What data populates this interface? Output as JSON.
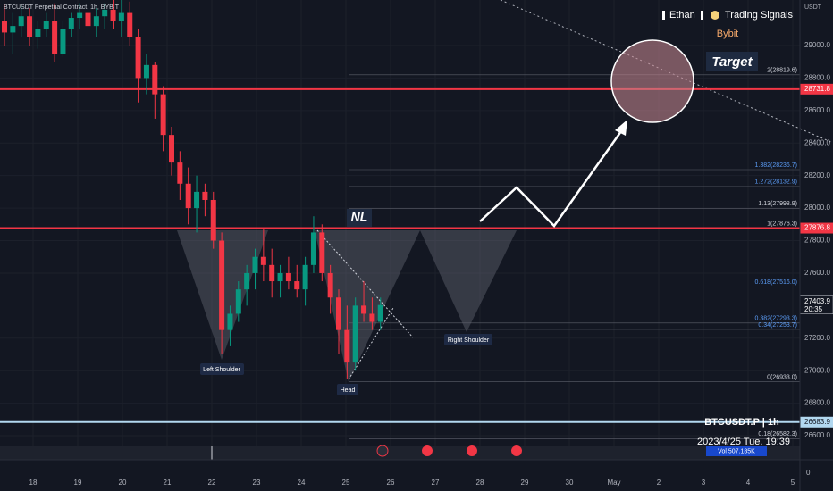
{
  "header": {
    "symbol": "BTCUSDT Perpetual Contract, 1h, BYBIT"
  },
  "watermark": {
    "author": "Ethan",
    "channel": "Trading Signals",
    "exchange": "Bybit"
  },
  "chart_data": {
    "type": "candlestick",
    "currency": "USDT",
    "up_color": "#089981",
    "down_color": "#f23645",
    "ylim": [
      26452,
      29280
    ],
    "yticks": [
      {
        "value": 29000,
        "label": "29000.0"
      },
      {
        "value": 28800,
        "label": "28800.0"
      },
      {
        "value": 28600,
        "label": "28600.0"
      },
      {
        "value": 28400,
        "label": "28400.0"
      },
      {
        "value": 28200,
        "label": "28200.0"
      },
      {
        "value": 28000,
        "label": "28000.0"
      },
      {
        "value": 27800,
        "label": "27800.0"
      },
      {
        "value": 27600,
        "label": "27600.0"
      },
      {
        "value": 27200,
        "label": "27200.0"
      },
      {
        "value": 27000,
        "label": "27000.0"
      },
      {
        "value": 26800,
        "label": "26800.0"
      },
      {
        "value": 26600,
        "label": "26600.0"
      }
    ],
    "x_labels": [
      "18",
      "19",
      "20",
      "21",
      "22",
      "23",
      "24",
      "25",
      "26",
      "27",
      "28",
      "29",
      "30",
      "May",
      "2",
      "3",
      "4",
      "5"
    ],
    "candles": [
      {
        "open": 29150,
        "high": 29250,
        "low": 29000,
        "close": 29080
      },
      {
        "open": 29080,
        "high": 29200,
        "low": 28950,
        "close": 29120
      },
      {
        "open": 29120,
        "high": 29250,
        "low": 29050,
        "close": 29180
      },
      {
        "open": 29180,
        "high": 29230,
        "low": 29000,
        "close": 29050
      },
      {
        "open": 29050,
        "high": 29150,
        "low": 28980,
        "close": 29100
      },
      {
        "open": 29100,
        "high": 29200,
        "low": 29050,
        "close": 29150
      },
      {
        "open": 29150,
        "high": 29260,
        "low": 28900,
        "close": 28950
      },
      {
        "open": 28950,
        "high": 29150,
        "low": 28930,
        "close": 29100
      },
      {
        "open": 29100,
        "high": 29200,
        "low": 29050,
        "close": 29170
      },
      {
        "open": 29170,
        "high": 29260,
        "low": 29100,
        "close": 29200
      },
      {
        "open": 29200,
        "high": 29260,
        "low": 29080,
        "close": 29120
      },
      {
        "open": 29120,
        "high": 29230,
        "low": 29050,
        "close": 29180
      },
      {
        "open": 29180,
        "high": 29260,
        "low": 29100,
        "close": 29220
      },
      {
        "open": 29220,
        "high": 29280,
        "low": 29100,
        "close": 29150
      },
      {
        "open": 29150,
        "high": 29280,
        "low": 29050,
        "close": 29200
      },
      {
        "open": 29200,
        "high": 29270,
        "low": 29000,
        "close": 29050
      },
      {
        "open": 29050,
        "high": 29100,
        "low": 28650,
        "close": 28800
      },
      {
        "open": 28800,
        "high": 28950,
        "low": 28700,
        "close": 28880
      },
      {
        "open": 28880,
        "high": 28900,
        "low": 28550,
        "close": 28700
      },
      {
        "open": 28700,
        "high": 28750,
        "low": 28350,
        "close": 28450
      },
      {
        "open": 28450,
        "high": 28500,
        "low": 28200,
        "close": 28280
      },
      {
        "open": 28280,
        "high": 28350,
        "low": 28050,
        "close": 28150
      },
      {
        "open": 28150,
        "high": 28250,
        "low": 27900,
        "close": 28000
      },
      {
        "open": 28000,
        "high": 28200,
        "low": 27850,
        "close": 28100
      },
      {
        "open": 28100,
        "high": 28150,
        "low": 27950,
        "close": 28050
      },
      {
        "open": 28050,
        "high": 28100,
        "low": 27750,
        "close": 27800
      },
      {
        "open": 27800,
        "high": 27850,
        "low": 27100,
        "close": 27250
      },
      {
        "open": 27250,
        "high": 27400,
        "low": 27150,
        "close": 27350
      },
      {
        "open": 27350,
        "high": 27550,
        "low": 27300,
        "close": 27500
      },
      {
        "open": 27500,
        "high": 27650,
        "low": 27400,
        "close": 27600
      },
      {
        "open": 27600,
        "high": 27750,
        "low": 27500,
        "close": 27700
      },
      {
        "open": 27700,
        "high": 27880,
        "low": 27550,
        "close": 27650
      },
      {
        "open": 27650,
        "high": 27750,
        "low": 27450,
        "close": 27550
      },
      {
        "open": 27550,
        "high": 27650,
        "low": 27450,
        "close": 27600
      },
      {
        "open": 27600,
        "high": 27700,
        "low": 27500,
        "close": 27550
      },
      {
        "open": 27550,
        "high": 27650,
        "low": 27450,
        "close": 27500
      },
      {
        "open": 27500,
        "high": 27700,
        "low": 27400,
        "close": 27650
      },
      {
        "open": 27650,
        "high": 27950,
        "low": 27600,
        "close": 27850
      },
      {
        "open": 27850,
        "high": 27900,
        "low": 27550,
        "close": 27600
      },
      {
        "open": 27600,
        "high": 27650,
        "low": 27350,
        "close": 27450
      },
      {
        "open": 27450,
        "high": 27500,
        "low": 27100,
        "close": 27250
      },
      {
        "open": 27250,
        "high": 27400,
        "low": 26950,
        "close": 27050
      },
      {
        "open": 27050,
        "high": 27450,
        "low": 27000,
        "close": 27400
      },
      {
        "open": 27400,
        "high": 27550,
        "low": 27300,
        "close": 27350
      },
      {
        "open": 27350,
        "high": 27450,
        "low": 27250,
        "close": 27300
      },
      {
        "open": 27300,
        "high": 27450,
        "low": 27250,
        "close": 27403.9
      }
    ]
  },
  "levels": [
    {
      "value": 28731.8,
      "label": "28731.8",
      "color": "#f23645"
    },
    {
      "value": 27876.8,
      "label": "27876.8",
      "color": "#f23645"
    },
    {
      "value": 26683.9,
      "label": "26683.9",
      "color": "#b2d8f0"
    }
  ],
  "last_price": {
    "value": 27403.9,
    "label": "27403.9",
    "countdown": "20:35"
  },
  "fib": [
    {
      "value": 28819.6,
      "label": "2(28819.6)"
    },
    {
      "value": 28236.7,
      "label": "1.382(28236.7)"
    },
    {
      "value": 28132.9,
      "label": "1.272(28132.9)"
    },
    {
      "value": 27998.9,
      "label": "1.13(27998.9)"
    },
    {
      "value": 27876.3,
      "label": "1(27876.3)"
    },
    {
      "value": 27516.0,
      "label": "0.618(27516.0)"
    },
    {
      "value": 27293.3,
      "label": "0.382(27293.3)"
    },
    {
      "value": 27253.7,
      "label": "0.34(27253.7)"
    },
    {
      "value": 26933.0,
      "label": "0(26933.0)"
    },
    {
      "value": 26582.3,
      "label": "0.18(26582.3)"
    }
  ],
  "annotations": {
    "target": "Target",
    "neckline": "NL",
    "left_shoulder": "Left Shoulder",
    "head": "Head",
    "right_shoulder": "Right Shoulder"
  },
  "info_box": {
    "symbol": "BTCUSDT.P | 1h",
    "datetime": "2023/4/25 Tue. 19:39",
    "volume": "Vol 507.185K"
  },
  "volume_axis": {
    "zero": "0"
  }
}
